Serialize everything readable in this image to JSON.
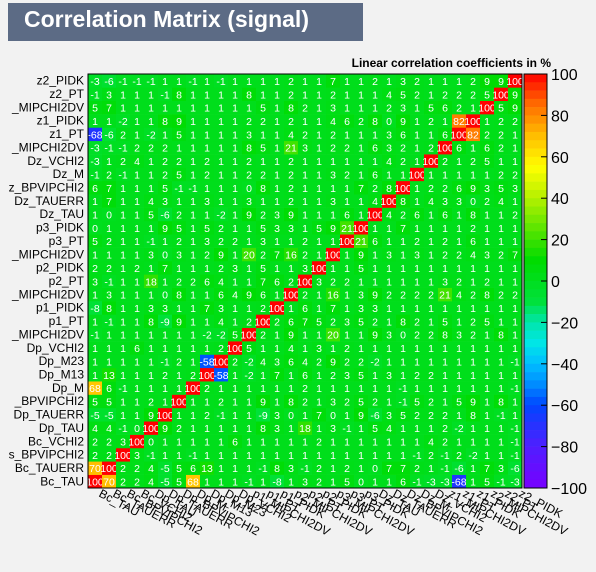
{
  "chart_data": {
    "type": "heatmap",
    "title": "Correlation Matrix (signal)",
    "subtitle": "Linear correlation coefficients in %",
    "zlim": [
      -100,
      100
    ],
    "palette_ticks": [
      "100",
      "80",
      "60",
      "40",
      "20",
      "0",
      "−20",
      "−40",
      "−60",
      "−80",
      "−100"
    ],
    "variables": [
      "Bc_TAU",
      "Bc_TAUERR",
      "Bc_BPVIPCHI2",
      "Bc_VCHI2",
      "Dp_TAU",
      "Dp_TAUERR",
      "Dp_BPVIPCHI2",
      "Dp_M",
      "Dp_M13",
      "Dp_M23",
      "Dp_VCHI2",
      "p1_MIPCHI2DV",
      "p1_PT",
      "p1_PIDK",
      "p2_MIPCHI2DV",
      "p2_PT",
      "p2_PIDK",
      "p3_MIPCHI2DV",
      "p3_PT",
      "p3_PIDK",
      "Dz_TAU",
      "Dz_TAUERR",
      "Dz_BPVIPCHI2",
      "Dz_M",
      "Dz_VCHI2",
      "z1_MIPCHI2DV",
      "z1_PT",
      "z1_PIDK",
      "z2_MIPCHI2DV",
      "z2_PT",
      "z2_PIDK"
    ],
    "y_labels_visible": [
      "Bc_TAU",
      "Bc_TAUERR",
      "s_BPVIPCHI2",
      "Bc_VCHI2",
      "Dp_TAU",
      "Dp_TAUERR",
      "_BPVIPCHI2",
      "Dp_M",
      "Dp_M13",
      "Dp_M23",
      "Dp_VCHI2",
      "_MIPCHI2DV",
      "p1_PT",
      "p1_PIDK",
      "_MIPCHI2DV",
      "p2_PT",
      "p2_PIDK",
      "_MIPCHI2DV",
      "p3_PT",
      "p3_PIDK",
      "Dz_TAU",
      "Dz_TAUERR",
      "z_BPVIPCHI2",
      "Dz_M",
      "Dz_VCHI2",
      "_MIPCHI2DV",
      "z1_PT",
      "z1_PIDK",
      "_MIPCHI2DV",
      "z2_PT",
      "z2_PIDK"
    ],
    "matrix_rows_bottom_to_top": [
      [
        100,
        70,
        2,
        2,
        4,
        -5,
        5,
        68,
        1,
        1,
        1,
        -1,
        1,
        -8,
        1,
        3,
        2,
        1,
        5,
        0,
        1,
        1,
        6,
        -1,
        -3,
        -3,
        -68,
        1,
        5,
        -1,
        -3
      ],
      [
        70,
        100,
        2,
        2,
        4,
        -5,
        5,
        6,
        13,
        1,
        1,
        1,
        -1,
        8,
        3,
        -1,
        2,
        1,
        2,
        1,
        0,
        7,
        7,
        2,
        1,
        -1,
        -6,
        1,
        7,
        3,
        -6
      ],
      [
        2,
        2,
        100,
        3,
        -1,
        1,
        1,
        -1,
        1,
        1,
        1,
        1,
        1,
        1,
        1,
        1,
        1,
        1,
        1,
        1,
        1,
        1,
        1,
        -1,
        2,
        -1,
        2,
        -2,
        1,
        1,
        -1
      ],
      [
        2,
        2,
        3,
        100,
        0,
        1,
        1,
        1,
        1,
        1,
        6,
        1,
        1,
        1,
        1,
        1,
        2,
        1,
        1,
        1,
        1,
        1,
        1,
        1,
        4,
        2,
        1,
        1,
        1,
        1,
        -1
      ],
      [
        4,
        4,
        -1,
        0,
        100,
        9,
        2,
        1,
        1,
        1,
        1,
        1,
        8,
        3,
        1,
        18,
        1,
        3,
        -1,
        1,
        5,
        4,
        1,
        1,
        1,
        2,
        -2,
        1,
        1,
        1,
        -1
      ],
      [
        -5,
        -5,
        1,
        1,
        9,
        100,
        1,
        1,
        2,
        -1,
        1,
        1,
        -9,
        3,
        0,
        1,
        7,
        0,
        1,
        9,
        -6,
        3,
        5,
        2,
        2,
        2,
        1,
        8,
        1,
        -1,
        1
      ],
      [
        5,
        5,
        1,
        1,
        2,
        1,
        100,
        1,
        1,
        2,
        1,
        1,
        9,
        1,
        8,
        2,
        1,
        3,
        2,
        5,
        2,
        1,
        -1,
        5,
        2,
        1,
        5,
        9,
        1,
        8,
        1
      ],
      [
        68,
        6,
        -1,
        1,
        1,
        1,
        1,
        100,
        2,
        1,
        1,
        1,
        1,
        1,
        1,
        2,
        1,
        1,
        1,
        1,
        1,
        1,
        -1,
        1,
        1,
        1,
        1,
        1,
        1,
        1,
        -1
      ],
      [
        1,
        13,
        1,
        1,
        1,
        2,
        1,
        2,
        100,
        -58,
        1,
        -2,
        1,
        7,
        1,
        6,
        1,
        2,
        3,
        5,
        1,
        3,
        1,
        2,
        2,
        1,
        1,
        1,
        1,
        1,
        1
      ],
      [
        1,
        1,
        1,
        1,
        1,
        -1,
        2,
        1,
        -58,
        100,
        2,
        -2,
        4,
        3,
        6,
        4,
        2,
        9,
        2,
        2,
        -2,
        1,
        1,
        1,
        1,
        1,
        1,
        1,
        1,
        1,
        -1
      ],
      [
        1,
        1,
        1,
        6,
        1,
        1,
        1,
        1,
        1,
        2,
        100,
        5,
        1,
        1,
        4,
        1,
        3,
        1,
        2,
        1,
        1,
        1,
        1,
        1,
        1,
        1,
        1,
        1,
        1,
        1,
        1
      ],
      [
        -1,
        1,
        1,
        1,
        1,
        1,
        1,
        1,
        -2,
        -2,
        5,
        100,
        2,
        1,
        9,
        1,
        1,
        20,
        1,
        1,
        9,
        3,
        0,
        2,
        2,
        8,
        3,
        2,
        1,
        8,
        1
      ],
      [
        1,
        -1,
        1,
        1,
        8,
        -9,
        9,
        1,
        1,
        4,
        1,
        2,
        100,
        2,
        6,
        7,
        5,
        2,
        3,
        5,
        2,
        1,
        8,
        2,
        1,
        5,
        1,
        2,
        5,
        1,
        1
      ],
      [
        -8,
        8,
        1,
        1,
        3,
        3,
        1,
        1,
        7,
        3,
        1,
        1,
        2,
        100,
        1,
        6,
        1,
        7,
        1,
        3,
        3,
        1,
        1,
        1,
        1,
        1,
        1,
        1,
        1,
        1,
        1
      ],
      [
        1,
        3,
        1,
        1,
        1,
        0,
        8,
        1,
        1,
        6,
        4,
        9,
        6,
        1,
        100,
        2,
        1,
        16,
        1,
        3,
        9,
        2,
        2,
        2,
        2,
        21,
        4,
        2,
        8,
        2,
        2
      ],
      [
        3,
        -1,
        1,
        1,
        18,
        1,
        2,
        2,
        6,
        4,
        1,
        1,
        7,
        6,
        2,
        100,
        3,
        2,
        2,
        1,
        1,
        1,
        1,
        1,
        1,
        3,
        2,
        1,
        2,
        1,
        1
      ],
      [
        2,
        2,
        1,
        2,
        1,
        7,
        1,
        1,
        1,
        2,
        3,
        1,
        5,
        1,
        1,
        3,
        100,
        1,
        1,
        5,
        1,
        1,
        1,
        1,
        1,
        1,
        1,
        1,
        1,
        1,
        1
      ],
      [
        1,
        1,
        1,
        1,
        3,
        0,
        3,
        1,
        2,
        9,
        1,
        20,
        2,
        7,
        16,
        2,
        1,
        100,
        1,
        9,
        1,
        3,
        1,
        3,
        1,
        2,
        2,
        4,
        3,
        2,
        7
      ],
      [
        5,
        2,
        1,
        1,
        -1,
        1,
        2,
        1,
        3,
        2,
        2,
        1,
        3,
        1,
        1,
        2,
        1,
        1,
        100,
        21,
        6,
        1,
        1,
        2,
        1,
        2,
        1,
        6,
        1,
        1,
        1
      ],
      [
        0,
        1,
        1,
        1,
        1,
        9,
        5,
        1,
        5,
        2,
        1,
        1,
        5,
        3,
        3,
        1,
        5,
        9,
        21,
        100,
        1,
        1,
        7,
        1,
        1,
        1,
        1,
        2,
        1,
        1,
        1
      ],
      [
        1,
        0,
        1,
        1,
        5,
        -6,
        2,
        1,
        1,
        -2,
        1,
        9,
        2,
        3,
        9,
        1,
        1,
        1,
        6,
        1,
        100,
        4,
        2,
        6,
        1,
        6,
        1,
        8,
        1,
        1,
        2
      ],
      [
        1,
        7,
        1,
        1,
        4,
        3,
        1,
        1,
        3,
        1,
        1,
        3,
        1,
        1,
        2,
        1,
        1,
        3,
        1,
        1,
        4,
        100,
        8,
        1,
        4,
        3,
        3,
        0,
        2,
        4,
        1
      ],
      [
        6,
        7,
        1,
        1,
        1,
        5,
        -1,
        -1,
        1,
        1,
        1,
        0,
        8,
        1,
        2,
        1,
        1,
        1,
        1,
        7,
        2,
        8,
        100,
        1,
        2,
        2,
        6,
        9,
        3,
        5,
        3
      ],
      [
        -1,
        2,
        -1,
        1,
        1,
        2,
        5,
        1,
        2,
        1,
        1,
        2,
        2,
        1,
        2,
        1,
        1,
        3,
        2,
        1,
        6,
        1,
        1,
        100,
        1,
        1,
        1,
        1,
        1,
        2,
        2
      ],
      [
        -3,
        1,
        2,
        4,
        1,
        2,
        2,
        1,
        2,
        1,
        1,
        2,
        1,
        1,
        2,
        1,
        1,
        1,
        1,
        1,
        1,
        4,
        2,
        1,
        100,
        2,
        1,
        2,
        5,
        1,
        1
      ],
      [
        -3,
        -1,
        -1,
        2,
        2,
        2,
        1,
        1,
        1,
        1,
        1,
        8,
        5,
        1,
        21,
        3,
        1,
        2,
        2,
        1,
        6,
        3,
        2,
        1,
        2,
        100,
        6,
        1,
        6,
        2,
        1
      ],
      [
        -68,
        -6,
        2,
        1,
        -2,
        1,
        5,
        1,
        1,
        1,
        1,
        3,
        1,
        1,
        4,
        2,
        1,
        2,
        1,
        1,
        1,
        3,
        6,
        1,
        1,
        6,
        100,
        82,
        2,
        2,
        1
      ],
      [
        1,
        1,
        -2,
        1,
        1,
        8,
        9,
        1,
        1,
        1,
        1,
        2,
        2,
        1,
        2,
        1,
        1,
        4,
        6,
        2,
        8,
        0,
        9,
        1,
        2,
        1,
        82,
        100,
        1,
        2,
        2
      ],
      [
        5,
        7,
        1,
        1,
        1,
        1,
        1,
        1,
        1,
        1,
        1,
        1,
        5,
        1,
        8,
        2,
        1,
        3,
        1,
        1,
        1,
        2,
        3,
        1,
        5,
        6,
        2,
        1,
        100,
        5,
        9
      ],
      [
        -1,
        3,
        1,
        1,
        1,
        -1,
        8,
        1,
        1,
        1,
        1,
        8,
        1,
        1,
        2,
        1,
        1,
        2,
        1,
        1,
        1,
        4,
        5,
        2,
        1,
        2,
        2,
        2,
        5,
        100,
        9
      ],
      [
        -3,
        -6,
        -1,
        -1,
        -1,
        1,
        1,
        -1,
        1,
        -1,
        1,
        1,
        1,
        1,
        2,
        1,
        1,
        7,
        1,
        1,
        2,
        1,
        3,
        2,
        1,
        1,
        1,
        2,
        9,
        9,
        100
      ]
    ]
  }
}
